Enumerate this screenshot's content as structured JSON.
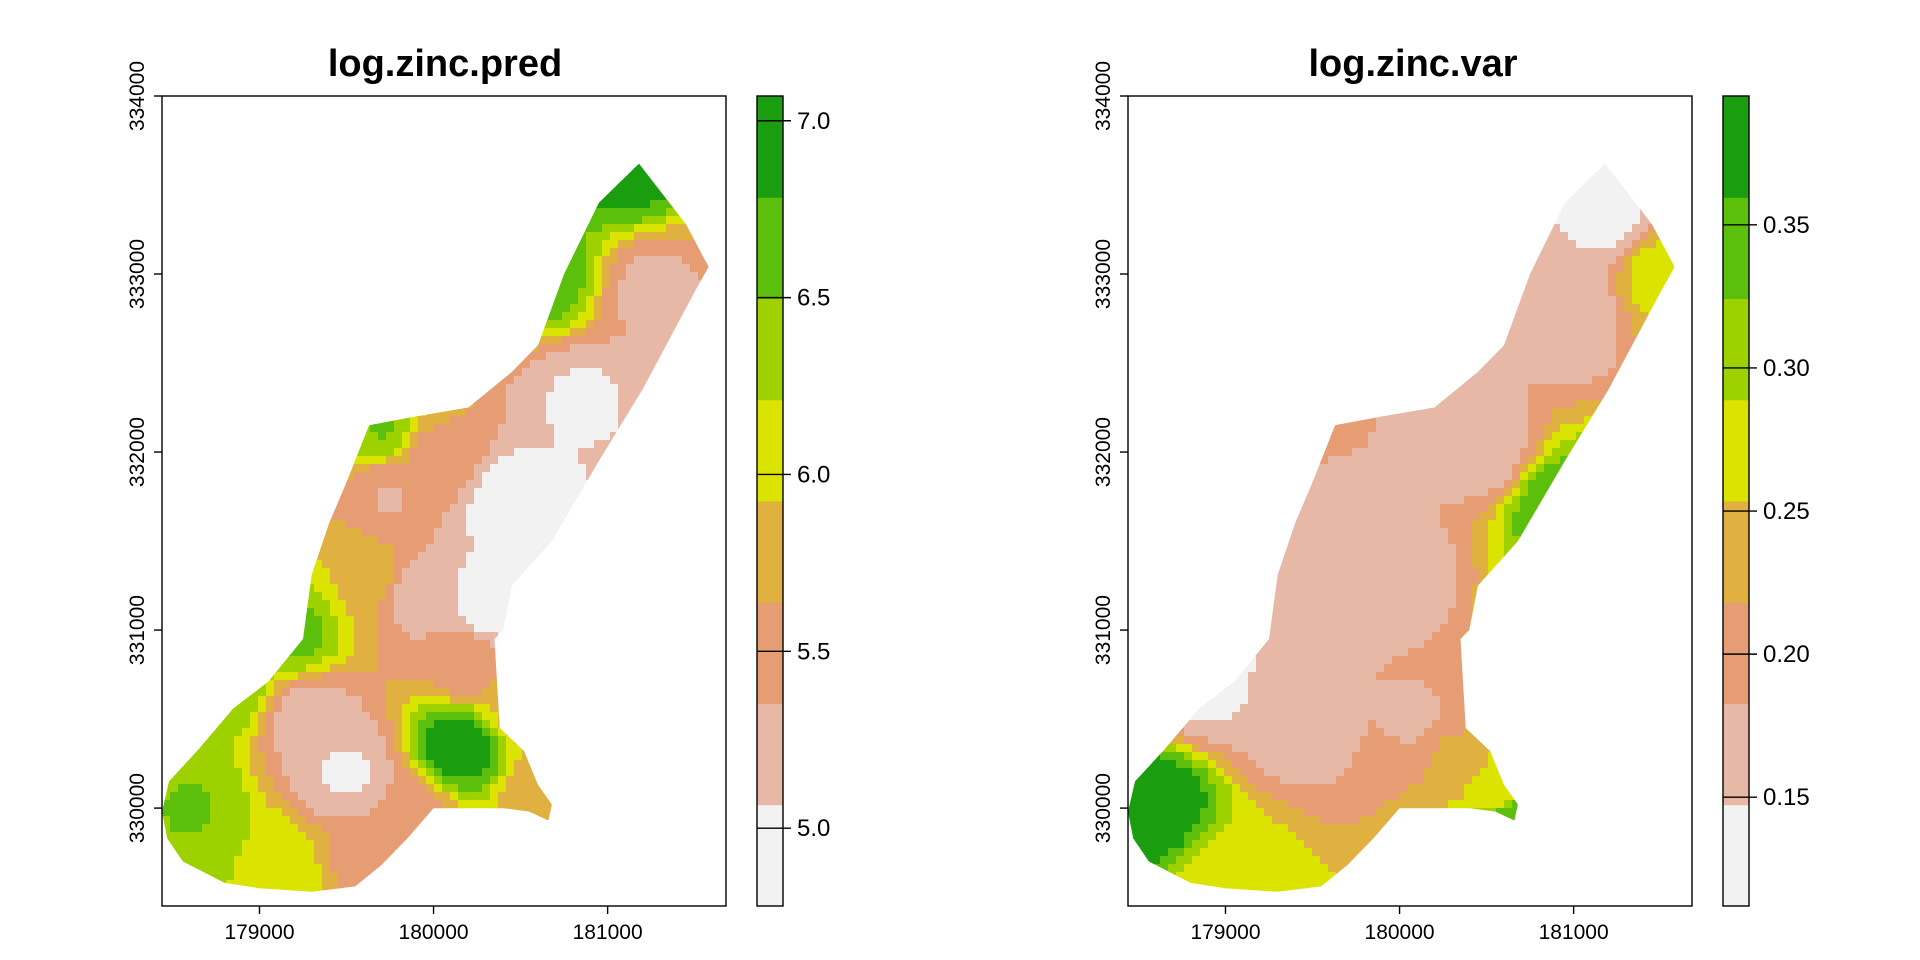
{
  "chart_data": [
    {
      "type": "heatmap",
      "title": "log.zinc.pred",
      "xlim": [
        178440,
        181680
      ],
      "ylim": [
        329450,
        334000
      ],
      "x_ticks": [
        "179000",
        "180000",
        "181000"
      ],
      "y_ticks": [
        "330000",
        "331000",
        "332000",
        "333000",
        "334000"
      ],
      "grid": false,
      "legend": "right colorbar",
      "colorbar": {
        "min": 4.78,
        "max": 7.07,
        "ticks": [
          "5.0",
          "5.5",
          "6.0",
          "6.5",
          "7.0"
        ]
      },
      "colors": [
        "#f2f2f2",
        "#e8b8a6",
        "#e69d74",
        "#e0b040",
        "#dbe300",
        "#9ed100",
        "#5cbf0b",
        "#1a9e10"
      ],
      "control_points": [
        {
          "x": 180350,
          "y": 331150,
          "v": 4.85
        },
        {
          "x": 180450,
          "y": 331700,
          "v": 4.9
        },
        {
          "x": 180850,
          "y": 332300,
          "v": 5.05
        },
        {
          "x": 181250,
          "y": 332900,
          "v": 5.3
        },
        {
          "x": 179500,
          "y": 330200,
          "v": 5.05
        },
        {
          "x": 179300,
          "y": 330500,
          "v": 5.2
        },
        {
          "x": 179900,
          "y": 331200,
          "v": 5.25
        },
        {
          "x": 179750,
          "y": 331750,
          "v": 5.35
        },
        {
          "x": 180200,
          "y": 330800,
          "v": 5.5
        },
        {
          "x": 180000,
          "y": 332000,
          "v": 5.6
        },
        {
          "x": 180150,
          "y": 330350,
          "v": 6.95
        },
        {
          "x": 179700,
          "y": 332150,
          "v": 6.5
        },
        {
          "x": 180650,
          "y": 333000,
          "v": 6.65
        },
        {
          "x": 181100,
          "y": 333600,
          "v": 6.9
        },
        {
          "x": 179200,
          "y": 331000,
          "v": 6.55
        },
        {
          "x": 178800,
          "y": 330700,
          "v": 6.5
        },
        {
          "x": 178600,
          "y": 330000,
          "v": 6.5
        },
        {
          "x": 179100,
          "y": 329650,
          "v": 6.2
        },
        {
          "x": 179600,
          "y": 329700,
          "v": 5.6
        },
        {
          "x": 180650,
          "y": 330050,
          "v": 5.65
        },
        {
          "x": 180500,
          "y": 330600,
          "v": 5.8
        },
        {
          "x": 179600,
          "y": 331300,
          "v": 5.9
        },
        {
          "x": 179850,
          "y": 329950,
          "v": 5.4
        }
      ]
    },
    {
      "type": "heatmap",
      "title": "log.zinc.var",
      "xlim": [
        178440,
        181680
      ],
      "ylim": [
        329450,
        334000
      ],
      "x_ticks": [
        "179000",
        "180000",
        "181000"
      ],
      "y_ticks": [
        "330000",
        "331000",
        "332000",
        "333000",
        "334000"
      ],
      "grid": false,
      "legend": "right colorbar",
      "colorbar": {
        "min": 0.112,
        "max": 0.395,
        "ticks": [
          "0.15",
          "0.20",
          "0.25",
          "0.30",
          "0.35"
        ]
      },
      "colors": [
        "#f2f2f2",
        "#e8b8a6",
        "#e69d74",
        "#e0b040",
        "#dbe300",
        "#9ed100",
        "#5cbf0b",
        "#1a9e10"
      ],
      "control_points": [
        {
          "x": 180000,
          "y": 331300,
          "v": 0.165
        },
        {
          "x": 180500,
          "y": 332000,
          "v": 0.165
        },
        {
          "x": 181000,
          "y": 332800,
          "v": 0.16
        },
        {
          "x": 179400,
          "y": 330500,
          "v": 0.165
        },
        {
          "x": 178900,
          "y": 330700,
          "v": 0.14
        },
        {
          "x": 180100,
          "y": 330500,
          "v": 0.18
        },
        {
          "x": 181200,
          "y": 333300,
          "v": 0.14
        },
        {
          "x": 180900,
          "y": 331700,
          "v": 0.35
        },
        {
          "x": 181500,
          "y": 333000,
          "v": 0.27
        },
        {
          "x": 178600,
          "y": 330000,
          "v": 0.39
        },
        {
          "x": 179000,
          "y": 329600,
          "v": 0.27
        },
        {
          "x": 180600,
          "y": 330100,
          "v": 0.27
        },
        {
          "x": 180650,
          "y": 329950,
          "v": 0.34
        },
        {
          "x": 180300,
          "y": 330300,
          "v": 0.22
        },
        {
          "x": 180900,
          "y": 331000,
          "v": 0.28
        }
      ]
    }
  ]
}
